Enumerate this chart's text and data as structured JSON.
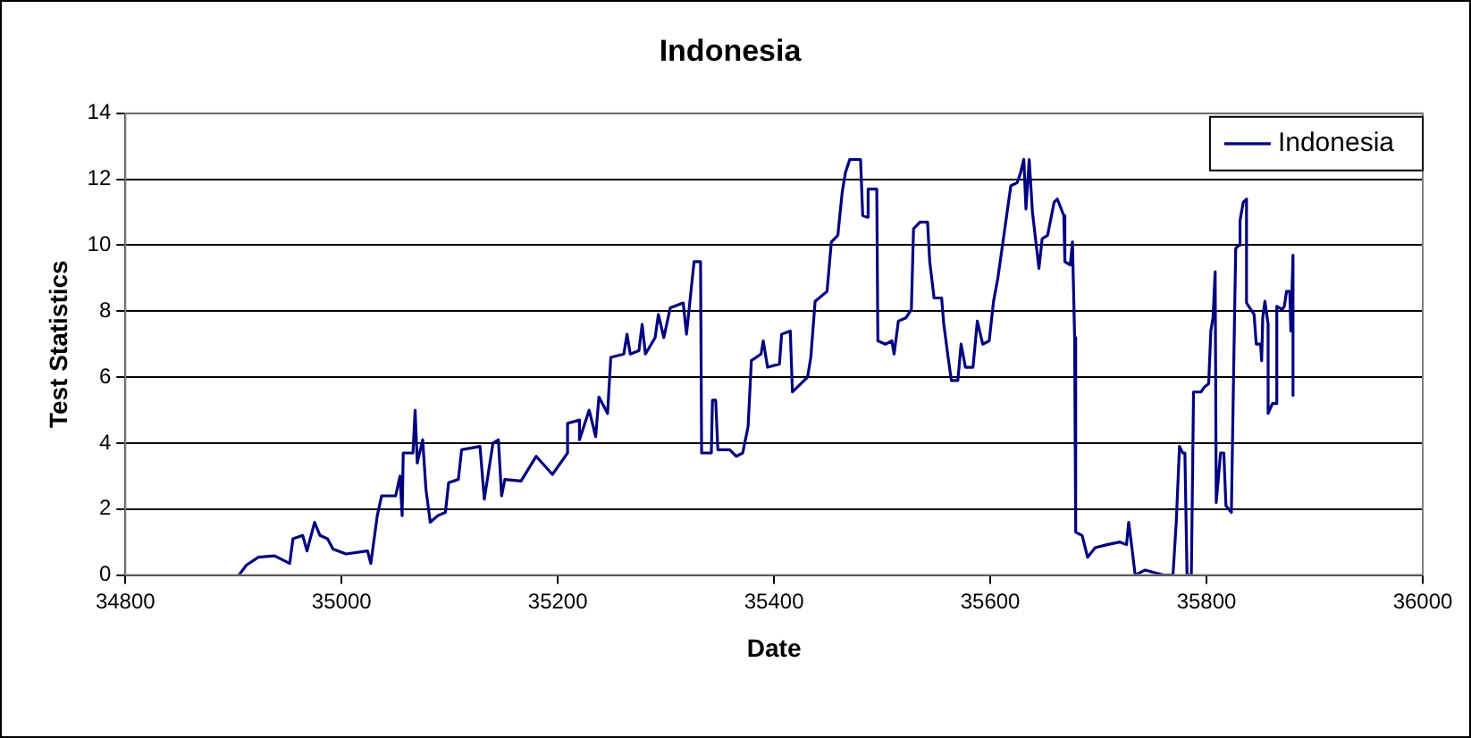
{
  "chart_data": {
    "type": "line",
    "title": "Indonesia",
    "xlabel": "Date",
    "ylabel": "Test Statistics",
    "xlim": [
      34800,
      36000
    ],
    "xticks": [
      34800,
      35000,
      35200,
      35400,
      35600,
      35800,
      36000
    ],
    "ylim": [
      0,
      14
    ],
    "yticks": [
      0,
      2,
      4,
      6,
      8,
      10,
      12,
      14
    ],
    "grid": "y",
    "legend": "top right",
    "marker": "none",
    "line_style": "solid",
    "series": [
      {
        "name": "Indonesia",
        "color": "#000080",
        "x": [
          34905,
          34912,
          34923,
          34938,
          34952,
          34955,
          34964,
          34968,
          34975,
          34980,
          34987,
          34992,
          35004,
          35024,
          35027,
          35033,
          35037,
          35050,
          35054,
          35056,
          35057,
          35066,
          35068,
          35070,
          35075,
          35078,
          35082,
          35089,
          35096,
          35099,
          35108,
          35111,
          35128,
          35132,
          35140,
          35145,
          35148,
          35151,
          35166,
          35180,
          35195,
          35209,
          35209,
          35220,
          35220,
          35229,
          35235,
          35238,
          35246,
          35249,
          35261,
          35264,
          35267,
          35275,
          35278,
          35281,
          35290,
          35293,
          35298,
          35304,
          35316,
          35319,
          35326,
          35332,
          35333,
          35342,
          35343,
          35346,
          35348,
          35359,
          35365,
          35371,
          35376,
          35379,
          35388,
          35390,
          35394,
          35405,
          35407,
          35415,
          35417,
          35431,
          35434,
          35438,
          35449,
          35453,
          35459,
          35463,
          35466,
          35470,
          35480,
          35482,
          35486,
          35487,
          35495,
          35496,
          35503,
          35509,
          35511,
          35515,
          35522,
          35527,
          35529,
          35535,
          35542,
          35544,
          35548,
          35555,
          35557,
          35561,
          35564,
          35570,
          35573,
          35577,
          35584,
          35588,
          35593,
          35599,
          35603,
          35607,
          35610,
          35613,
          35619,
          35625,
          35628,
          35631,
          35633,
          35636,
          35639,
          35645,
          35648,
          35653,
          35659,
          35662,
          35668,
          35669,
          35674,
          35676,
          35678,
          35679,
          35685,
          35690,
          35697,
          35708,
          35720,
          35726,
          35728,
          35731,
          35734,
          35743,
          35760,
          35769,
          35772,
          35775,
          35778,
          35780,
          35782,
          35786,
          35788,
          35795,
          35798,
          35802,
          35804,
          35806,
          35808,
          35809,
          35813,
          35816,
          35818,
          35823,
          35825,
          35827,
          35830,
          35831,
          35834,
          35837,
          35837,
          35841,
          35844,
          35846,
          35850,
          35851,
          35852,
          35854,
          35857,
          35857,
          35861,
          35865,
          35865,
          35870,
          35872,
          35874,
          35877,
          35878,
          35880,
          35880
        ],
        "values": [
          0,
          0.3,
          0.54,
          0.58,
          0.35,
          1.1,
          1.2,
          0.73,
          1.6,
          1.2,
          1.1,
          0.79,
          0.64,
          0.73,
          0.35,
          1.8,
          2.4,
          2.4,
          3.0,
          1.8,
          3.7,
          3.7,
          5.0,
          3.4,
          4.1,
          2.6,
          1.6,
          1.8,
          1.9,
          2.8,
          2.9,
          3.8,
          3.9,
          2.3,
          4.0,
          4.1,
          2.4,
          2.9,
          2.85,
          3.6,
          3.05,
          3.7,
          4.6,
          4.7,
          4.1,
          5.0,
          4.2,
          5.4,
          4.9,
          6.6,
          6.7,
          7.3,
          6.7,
          6.8,
          7.6,
          6.7,
          7.2,
          7.9,
          7.2,
          8.1,
          8.25,
          7.3,
          9.5,
          9.5,
          3.7,
          3.7,
          5.3,
          5.3,
          3.8,
          3.8,
          3.6,
          3.7,
          4.5,
          6.5,
          6.7,
          7.1,
          6.3,
          6.4,
          7.3,
          7.4,
          5.55,
          6.0,
          6.6,
          8.3,
          8.6,
          10.1,
          10.3,
          11.6,
          12.2,
          12.6,
          12.6,
          10.9,
          10.85,
          11.7,
          11.7,
          7.1,
          7.0,
          7.1,
          6.7,
          7.7,
          7.8,
          8.05,
          10.5,
          10.7,
          10.7,
          9.5,
          8.4,
          8.4,
          7.6,
          6.6,
          5.9,
          5.9,
          7.0,
          6.3,
          6.3,
          7.7,
          7.0,
          7.1,
          8.3,
          9.0,
          9.7,
          10.4,
          11.8,
          11.9,
          12.2,
          12.6,
          11.1,
          12.6,
          11.0,
          9.3,
          10.2,
          10.3,
          11.3,
          11.4,
          10.9,
          9.5,
          9.4,
          10.1,
          7.2,
          1.3,
          1.2,
          0.54,
          0.83,
          0.92,
          1.0,
          0.92,
          1.6,
          0.83,
          0,
          0.15,
          0,
          0,
          1.6,
          3.9,
          3.7,
          3.7,
          0,
          0,
          5.55,
          5.55,
          5.7,
          5.8,
          7.4,
          7.8,
          9.2,
          2.2,
          3.7,
          3.7,
          2.1,
          1.9,
          6.0,
          9.9,
          10.0,
          10.75,
          11.3,
          11.4,
          8.25,
          8.05,
          7.9,
          7.0,
          7.0,
          6.5,
          7.8,
          8.3,
          7.6,
          4.9,
          5.2,
          5.2,
          8.15,
          8.05,
          8.15,
          8.6,
          8.6,
          7.4,
          9.7,
          5.45
        ]
      }
    ]
  }
}
